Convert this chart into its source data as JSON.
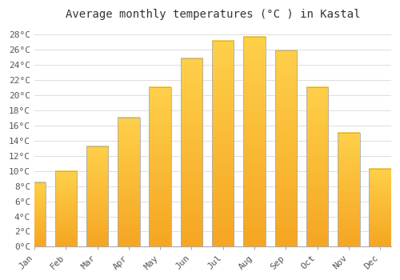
{
  "title": "Average monthly temperatures (°C ) in Kastal",
  "months": [
    "Jan",
    "Feb",
    "Mar",
    "Apr",
    "May",
    "Jun",
    "Jul",
    "Aug",
    "Sep",
    "Oct",
    "Nov",
    "Dec"
  ],
  "values": [
    8.5,
    10.0,
    13.2,
    17.0,
    21.0,
    24.8,
    27.1,
    27.7,
    25.9,
    21.0,
    15.0,
    10.3
  ],
  "bar_color_bottom": "#F5A623",
  "bar_color_top": "#FFD04A",
  "bar_edge_color": "#aaaaaa",
  "ylim": [
    0,
    29
  ],
  "ytick_step": 2,
  "background_color": "#ffffff",
  "grid_color": "#dddddd",
  "title_fontsize": 10,
  "tick_fontsize": 8,
  "font_family": "monospace"
}
